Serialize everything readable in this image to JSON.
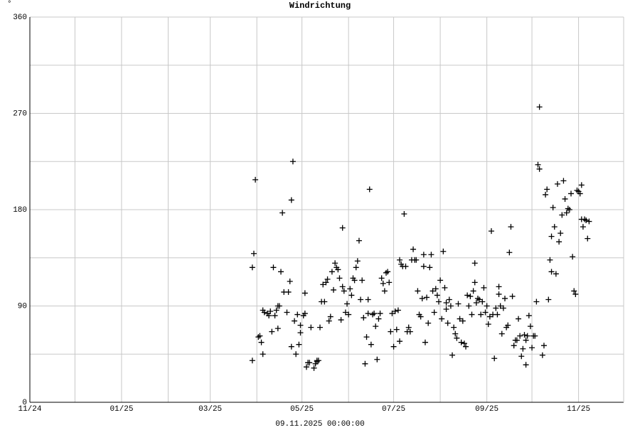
{
  "chart_data": {
    "type": "scatter",
    "title": "Windrichtung",
    "y_unit": "°",
    "footer": "09.11.2025 00:00:00",
    "color": "#000000",
    "grid": true,
    "xlim": [
      0,
      395
    ],
    "xticks": [
      {
        "value": 0,
        "label": "11/24"
      },
      {
        "value": 61,
        "label": "01/25"
      },
      {
        "value": 120,
        "label": "03/25"
      },
      {
        "value": 181,
        "label": "05/25"
      },
      {
        "value": 242,
        "label": "07/25"
      },
      {
        "value": 304,
        "label": "09/25"
      },
      {
        "value": 365,
        "label": "11/25"
      }
    ],
    "x_minor_ticks": [
      30,
      92,
      151,
      212,
      273,
      334
    ],
    "ylim": [
      0,
      360
    ],
    "yticks": [
      0,
      90,
      180,
      270,
      360
    ],
    "y_minor_ticks": [
      45,
      135,
      225,
      315
    ],
    "x": [
      148,
      148,
      149,
      150,
      152,
      153,
      154,
      155,
      155,
      156,
      158,
      159,
      160,
      161,
      162,
      163,
      164,
      165,
      165,
      166,
      167,
      168,
      169,
      171,
      172,
      173,
      174,
      174,
      175,
      176,
      177,
      178,
      179,
      180,
      180,
      182,
      183,
      183,
      184,
      185,
      186,
      187,
      189,
      190,
      191,
      191,
      192,
      193,
      194,
      195,
      196,
      197,
      198,
      199,
      200,
      201,
      202,
      203,
      204,
      205,
      206,
      207,
      208,
      208,
      209,
      210,
      211,
      212,
      213,
      214,
      215,
      216,
      217,
      218,
      219,
      220,
      221,
      222,
      223,
      224,
      225,
      225,
      226,
      227,
      228,
      229,
      230,
      231,
      232,
      233,
      234,
      235,
      236,
      237,
      238,
      239,
      240,
      241,
      242,
      243,
      244,
      245,
      246,
      246,
      247,
      248,
      249,
      250,
      251,
      252,
      253,
      254,
      255,
      256,
      257,
      258,
      259,
      260,
      261,
      262,
      262,
      263,
      264,
      265,
      266,
      267,
      268,
      269,
      270,
      271,
      272,
      273,
      274,
      275,
      276,
      277,
      277,
      278,
      279,
      280,
      281,
      282,
      283,
      284,
      285,
      286,
      287,
      288,
      289,
      290,
      291,
      292,
      293,
      294,
      295,
      296,
      296,
      297,
      298,
      299,
      300,
      301,
      302,
      303,
      304,
      305,
      306,
      307,
      308,
      309,
      310,
      311,
      312,
      312,
      313,
      314,
      315,
      316,
      317,
      318,
      319,
      320,
      321,
      322,
      323,
      324,
      325,
      326,
      327,
      328,
      329,
      330,
      330,
      331,
      332,
      333,
      334,
      335,
      336,
      337,
      338,
      339,
      339,
      341,
      342,
      343,
      344,
      345,
      346,
      347,
      347,
      348,
      349,
      350,
      351,
      352,
      353,
      354,
      355,
      356,
      357,
      358,
      359,
      360,
      361,
      362,
      363,
      364,
      365,
      366,
      367,
      367,
      368,
      369,
      370,
      371,
      372
    ],
    "values": [
      39,
      126,
      139,
      208,
      61,
      62,
      56,
      45,
      86,
      84,
      83,
      81,
      85,
      66,
      126,
      81,
      86,
      69,
      90,
      90,
      122,
      177,
      103,
      84,
      103,
      113,
      52,
      189,
      225,
      76,
      45,
      82,
      54,
      72,
      65,
      81,
      83,
      102,
      33,
      37,
      37,
      70,
      32,
      36,
      38,
      39,
      39,
      70,
      94,
      110,
      94,
      112,
      115,
      76,
      80,
      122,
      105,
      130,
      126,
      124,
      116,
      77,
      108,
      163,
      104,
      84,
      92,
      82,
      106,
      100,
      116,
      114,
      126,
      132,
      151,
      96,
      114,
      79,
      36,
      61,
      96,
      83,
      199,
      54,
      82,
      83,
      71,
      40,
      78,
      83,
      116,
      111,
      104,
      121,
      122,
      112,
      66,
      83,
      52,
      85,
      68,
      86,
      57,
      133,
      129,
      127,
      176,
      127,
      66,
      70,
      66,
      133,
      143,
      133,
      133,
      104,
      82,
      80,
      97,
      138,
      127,
      56,
      98,
      74,
      126,
      138,
      104,
      84,
      106,
      100,
      94,
      114,
      78,
      141,
      107,
      87,
      93,
      74,
      96,
      90,
      44,
      70,
      64,
      60,
      92,
      78,
      56,
      76,
      55,
      52,
      100,
      90,
      99,
      82,
      104,
      112,
      130,
      93,
      97,
      96,
      82,
      94,
      107,
      84,
      90,
      73,
      80,
      160,
      82,
      41,
      88,
      82,
      101,
      108,
      90,
      64,
      88,
      97,
      70,
      72,
      140,
      164,
      99,
      53,
      58,
      58,
      78,
      62,
      43,
      50,
      63,
      35,
      58,
      62,
      81,
      71,
      51,
      62,
      62,
      94,
      222,
      218,
      276,
      44,
      53,
      194,
      199,
      96,
      133,
      122,
      155,
      182,
      164,
      120,
      204,
      150,
      158,
      175,
      207,
      190,
      177,
      181,
      180,
      195,
      136,
      104,
      101,
      198,
      197,
      195,
      203,
      171,
      164,
      171,
      170,
      153,
      169
    ]
  }
}
